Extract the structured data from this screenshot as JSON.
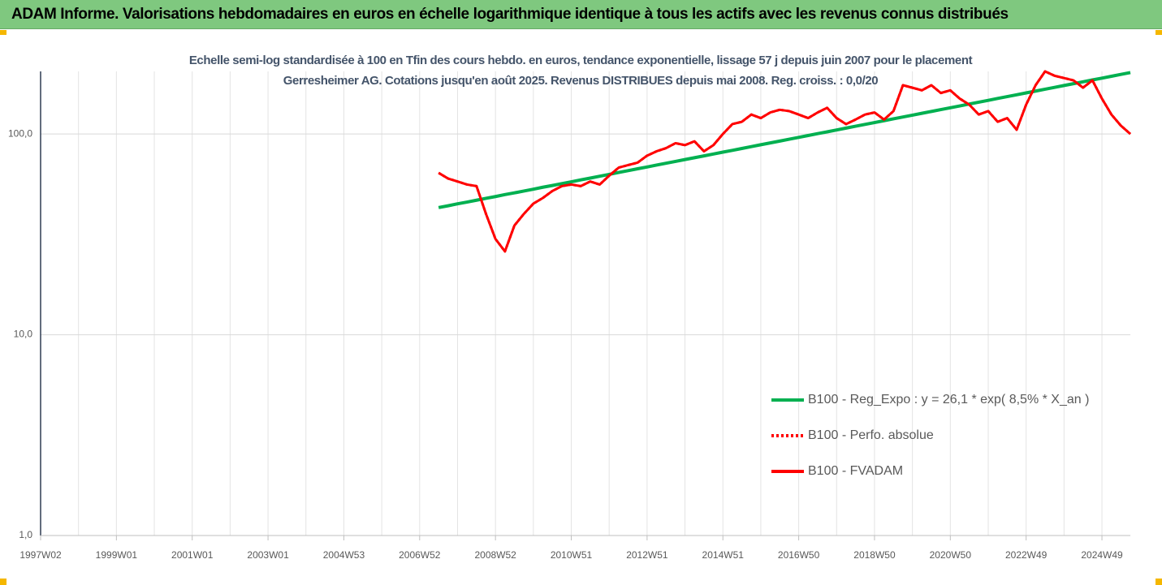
{
  "chart_data": {
    "type": "line",
    "title": "ADAM Informe. Valorisations hebdomadaires en euros en échelle logarithmique identique à tous les actifs avec les revenus connus distribués",
    "subtitle": "Echelle semi-log standardisée à 100 en Tfin des cours hebdo. en euros, tendance exponentielle, lissage 57 j depuis juin 2007 pour le placement Gerresheimer AG. Cotations jusqu'en août 2025. Revenus DISTRIBUES depuis mai 2008. Reg. croiss. : 0,0/20",
    "log_scale": true,
    "grid": true,
    "legend": "right",
    "ylim": [
      1,
      205
    ],
    "yticks": [
      {
        "value": 1,
        "label": "1,0"
      },
      {
        "value": 10,
        "label": "10,0"
      },
      {
        "value": 100,
        "label": "100,0"
      }
    ],
    "categories": [
      "1997W02",
      null,
      null,
      null,
      null,
      null,
      null,
      null,
      "1999W01",
      null,
      null,
      null,
      null,
      null,
      null,
      null,
      "2001W01",
      null,
      null,
      null,
      null,
      null,
      null,
      null,
      "2003W01",
      null,
      null,
      null,
      null,
      null,
      null,
      null,
      "2004W53",
      null,
      null,
      null,
      null,
      null,
      null,
      null,
      "2006W52",
      null,
      null,
      null,
      null,
      null,
      null,
      null,
      "2008W52",
      null,
      null,
      null,
      null,
      null,
      null,
      null,
      "2010W51",
      null,
      null,
      null,
      null,
      null,
      null,
      null,
      "2012W51",
      null,
      null,
      null,
      null,
      null,
      null,
      null,
      "2014W51",
      null,
      null,
      null,
      null,
      null,
      null,
      null,
      "2016W50",
      null,
      null,
      null,
      null,
      null,
      null,
      null,
      "2018W50",
      null,
      null,
      null,
      null,
      null,
      null,
      null,
      "2020W50",
      null,
      null,
      null,
      null,
      null,
      null,
      null,
      "2022W49",
      null,
      null,
      null,
      null,
      null,
      null,
      null,
      "2024W49",
      null,
      null,
      null
    ],
    "series": [
      {
        "name": "B100 - Reg_Expo : y = 26,1 * exp( 8,5% *  X_an )",
        "color": "#00b050",
        "style": "solid",
        "values": [
          null,
          null,
          null,
          null,
          null,
          null,
          null,
          null,
          null,
          null,
          null,
          null,
          null,
          null,
          null,
          null,
          null,
          null,
          null,
          null,
          null,
          null,
          null,
          null,
          null,
          null,
          null,
          null,
          null,
          null,
          null,
          null,
          null,
          null,
          null,
          null,
          null,
          null,
          null,
          null,
          null,
          null,
          43.0,
          43.9,
          44.9,
          45.8,
          46.8,
          47.8,
          48.8,
          49.9,
          50.9,
          52.0,
          53.1,
          54.3,
          55.4,
          56.6,
          57.8,
          59.1,
          60.3,
          61.6,
          62.9,
          64.3,
          65.7,
          67.1,
          68.5,
          70.0,
          71.5,
          73.0,
          74.6,
          76.2,
          77.8,
          79.5,
          81.2,
          82.9,
          84.7,
          86.5,
          88.4,
          90.3,
          92.2,
          94.2,
          96.2,
          98.3,
          100.4,
          102.5,
          104.7,
          107.0,
          109.3,
          111.6,
          114.0,
          116.5,
          119.0,
          121.5,
          124.1,
          126.8,
          129.5,
          132.3,
          135.1,
          138.0,
          141.0,
          144.0,
          147.1,
          150.3,
          153.5,
          156.8,
          160.2,
          163.6,
          167.1,
          170.7,
          174.4,
          178.1,
          182.0,
          185.9,
          189.8,
          193.9,
          198.1,
          202.3
        ]
      },
      {
        "name": "B100 - Perfo. absolue",
        "color": "#ff0000",
        "style": "dotted",
        "values": [
          null,
          null,
          null,
          null,
          null,
          null,
          null,
          null,
          null,
          null,
          null,
          null,
          null,
          null,
          null,
          null,
          null,
          null,
          null,
          null,
          null,
          null,
          null,
          null,
          null,
          null,
          null,
          null,
          null,
          null,
          null,
          null,
          null,
          null,
          null,
          null,
          null,
          null,
          null,
          null,
          null,
          null,
          64,
          60,
          58,
          56,
          55,
          40,
          30,
          26,
          35,
          40,
          45,
          48,
          52,
          55,
          56,
          55,
          58,
          56,
          62,
          68,
          70,
          72,
          78,
          82,
          85,
          90,
          88,
          92,
          82,
          88,
          100,
          112,
          115,
          125,
          120,
          128,
          132,
          130,
          125,
          120,
          128,
          135,
          120,
          112,
          118,
          125,
          128,
          118,
          130,
          175,
          170,
          165,
          175,
          160,
          165,
          150,
          140,
          125,
          130,
          115,
          120,
          105,
          140,
          175,
          205,
          195,
          190,
          185,
          170,
          185,
          150,
          125,
          110,
          100
        ]
      },
      {
        "name": "B100 - FVADAM",
        "color": "#ff0000",
        "style": "solid",
        "values": [
          null,
          null,
          null,
          null,
          null,
          null,
          null,
          null,
          null,
          null,
          null,
          null,
          null,
          null,
          null,
          null,
          null,
          null,
          null,
          null,
          null,
          null,
          null,
          null,
          null,
          null,
          null,
          null,
          null,
          null,
          null,
          null,
          null,
          null,
          null,
          null,
          null,
          null,
          null,
          null,
          null,
          null,
          64,
          60,
          58,
          56,
          55,
          40,
          30,
          26,
          35,
          40,
          45,
          48,
          52,
          55,
          56,
          55,
          58,
          56,
          62,
          68,
          70,
          72,
          78,
          82,
          85,
          90,
          88,
          92,
          82,
          88,
          100,
          112,
          115,
          125,
          120,
          128,
          132,
          130,
          125,
          120,
          128,
          135,
          120,
          112,
          118,
          125,
          128,
          118,
          130,
          175,
          170,
          165,
          175,
          160,
          165,
          150,
          140,
          125,
          130,
          115,
          120,
          105,
          140,
          175,
          205,
          195,
          190,
          185,
          170,
          185,
          150,
          125,
          110,
          100
        ]
      }
    ]
  }
}
